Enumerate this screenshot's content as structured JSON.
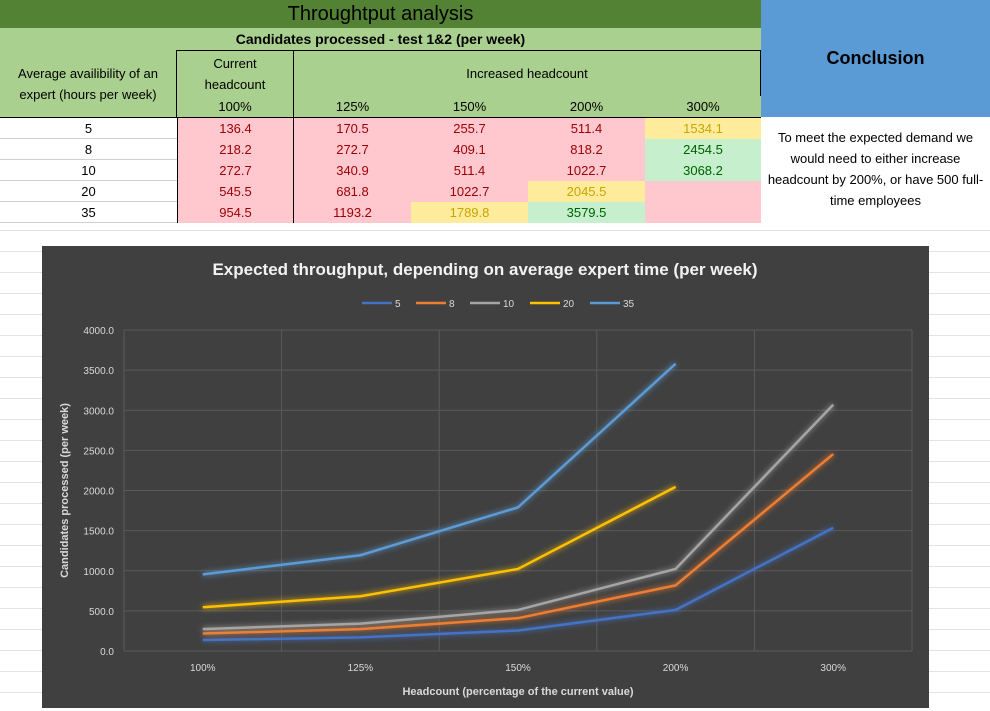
{
  "sheet": {
    "title": "Throughtput analysis",
    "subtitle": "Candidates processed - test 1&2 (per week)",
    "row_header": "Average availibility of an expert (hours per week)",
    "current_header": "Current headcount",
    "increased_header": "Increased headcount",
    "percent_headers": [
      "100%",
      "125%",
      "150%",
      "200%",
      "300%"
    ],
    "rows": [
      {
        "label": "5",
        "cells": [
          "136.4",
          "170.5",
          "255.7",
          "511.4",
          "1534.1"
        ]
      },
      {
        "label": "8",
        "cells": [
          "218.2",
          "272.7",
          "409.1",
          "818.2",
          "2454.5"
        ]
      },
      {
        "label": "10",
        "cells": [
          "272.7",
          "340.9",
          "511.4",
          "1022.7",
          "3068.2"
        ]
      },
      {
        "label": "20",
        "cells": [
          "545.5",
          "681.8",
          "1022.7",
          "2045.5",
          ""
        ]
      },
      {
        "label": "35",
        "cells": [
          "954.5",
          "1193.2",
          "1789.8",
          "3579.5",
          ""
        ]
      }
    ],
    "cell_status": [
      [
        "red",
        "red",
        "red",
        "red",
        "yellow"
      ],
      [
        "red",
        "red",
        "red",
        "red",
        "green"
      ],
      [
        "red",
        "red",
        "red",
        "red",
        "green"
      ],
      [
        "red",
        "red",
        "red",
        "yellow",
        "red"
      ],
      [
        "red",
        "red",
        "yellow",
        "green",
        "red"
      ]
    ],
    "conclusion_header": "Conclusion",
    "conclusion_text": "To meet the expected demand we would need to either increase headcount by 200%, or have 500 full-time employees"
  },
  "chart_data": {
    "type": "line",
    "title": "Expected throughput, depending on average expert time (per week)",
    "xlabel": "Headcount (percentage of the current value)",
    "ylabel": "Candidates processed (per week)",
    "categories": [
      "100%",
      "125%",
      "150%",
      "200%",
      "300%"
    ],
    "ylim": [
      0,
      4000
    ],
    "yticks": [
      "0.0",
      "500.0",
      "1000.0",
      "1500.0",
      "2000.0",
      "2500.0",
      "3000.0",
      "3500.0",
      "4000.0"
    ],
    "grid": true,
    "legend_position": "top",
    "series": [
      {
        "name": "5",
        "color": "#4472c4",
        "values": [
          136.4,
          170.5,
          255.7,
          511.4,
          1534.1
        ]
      },
      {
        "name": "8",
        "color": "#ed7d31",
        "values": [
          218.2,
          272.7,
          409.1,
          818.2,
          2454.5
        ]
      },
      {
        "name": "10",
        "color": "#a5a5a5",
        "values": [
          272.7,
          340.9,
          511.4,
          1022.7,
          3068.2
        ]
      },
      {
        "name": "20",
        "color": "#ffc000",
        "values": [
          545.5,
          681.8,
          1022.7,
          2045.5,
          null
        ]
      },
      {
        "name": "35",
        "color": "#5b9bd5",
        "values": [
          954.5,
          1193.2,
          1789.8,
          3579.5,
          null
        ]
      }
    ]
  }
}
